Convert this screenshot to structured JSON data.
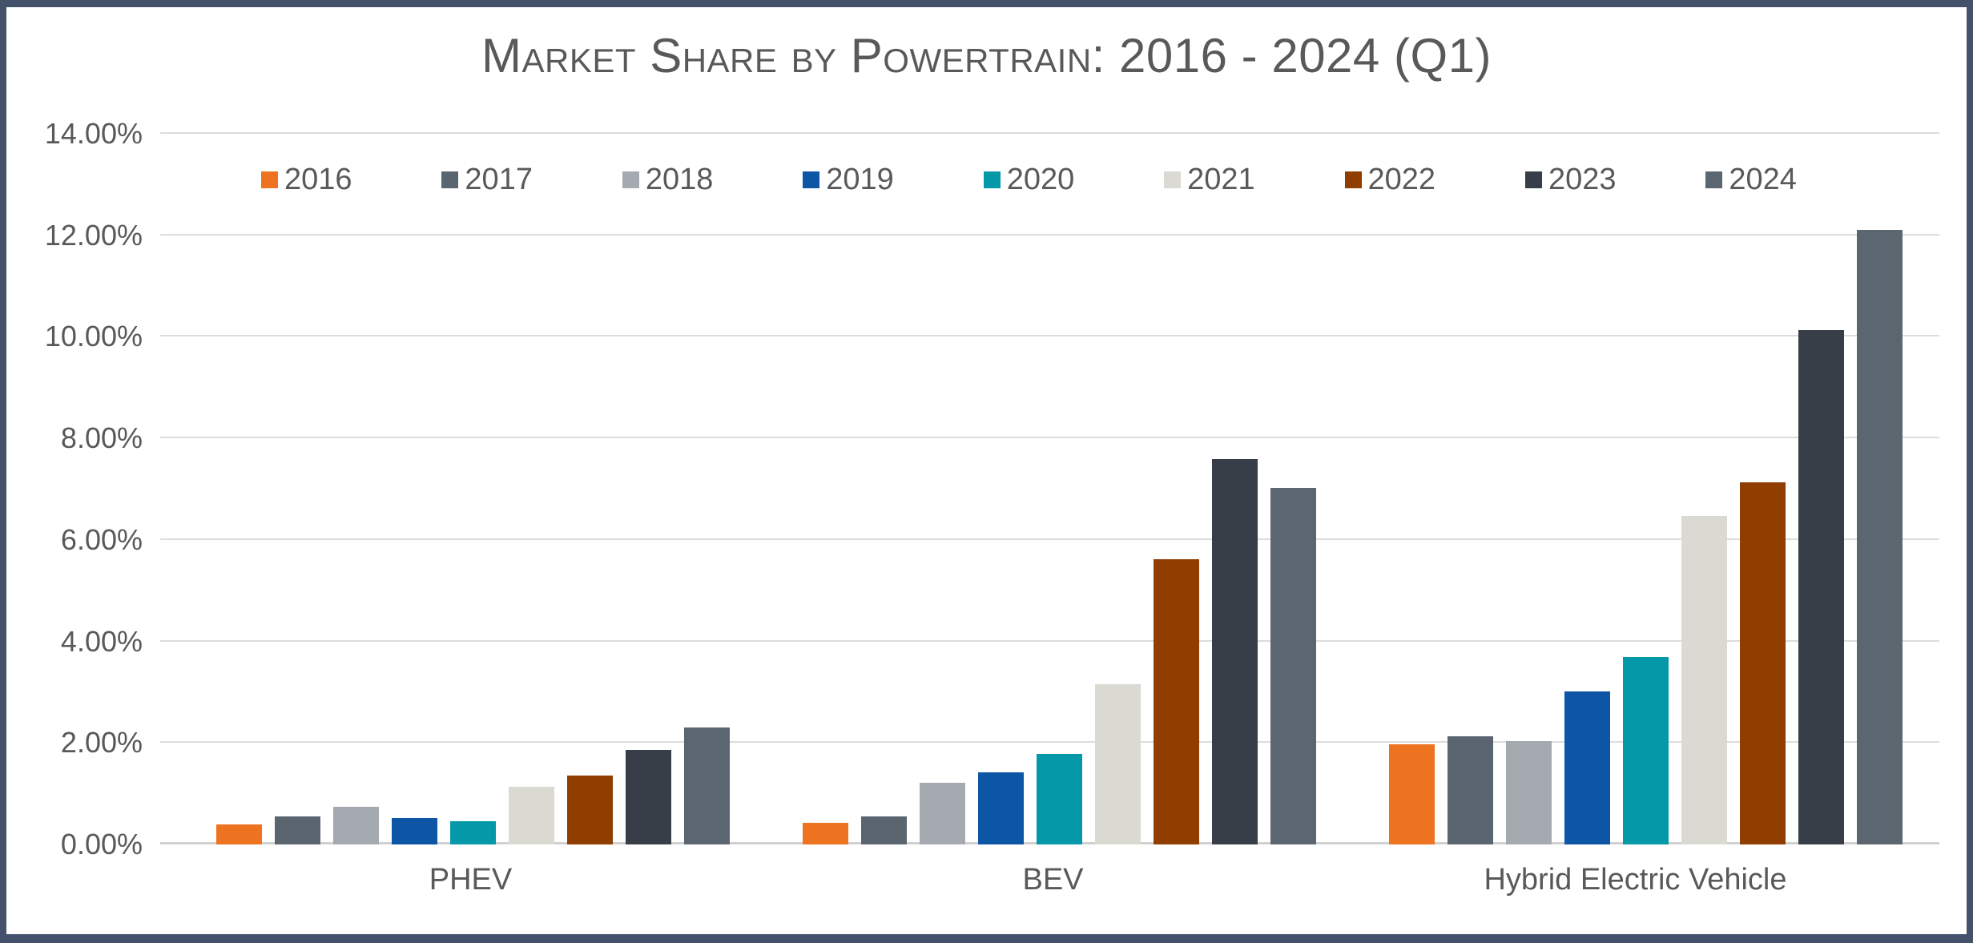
{
  "frame": {
    "border_color": "#44516B",
    "background": "#FFFFFF"
  },
  "title": "Market Share by Powertrain: 2016 - 2024 (Q1)",
  "colors": {
    "text": "#595959",
    "gridline": "#DDDDDD",
    "axis_line": "#D1D1D1"
  },
  "chart_data": {
    "type": "bar",
    "title": "Market Share by Powertrain: 2016 - 2024 (Q1)",
    "categories": [
      "PHEV",
      "BEV",
      "Hybrid Electric Vehicle"
    ],
    "series": [
      {
        "name": "2016",
        "color": "#EE7320",
        "values": [
          0.4,
          0.42,
          1.97
        ]
      },
      {
        "name": "2017",
        "color": "#5B6570",
        "values": [
          0.55,
          0.56,
          2.13
        ]
      },
      {
        "name": "2018",
        "color": "#A4AAAF",
        "values": [
          0.74,
          1.22,
          2.04
        ]
      },
      {
        "name": "2019",
        "color": "#0D55A5",
        "values": [
          0.52,
          1.42,
          3.02
        ]
      },
      {
        "name": "2020",
        "color": "#0598A8",
        "values": [
          0.46,
          1.79,
          3.7
        ]
      },
      {
        "name": "2021",
        "color": "#DBDAD2",
        "values": [
          1.14,
          3.15,
          6.47
        ]
      },
      {
        "name": "2022",
        "color": "#8F3E00",
        "values": [
          1.35,
          5.62,
          7.14
        ]
      },
      {
        "name": "2023",
        "color": "#373E47",
        "values": [
          1.87,
          7.6,
          10.14
        ]
      },
      {
        "name": "2024",
        "color": "#5C6670",
        "values": [
          2.3,
          7.03,
          12.11
        ]
      }
    ],
    "xlabel": "",
    "ylabel": "",
    "ylim": [
      0,
      14
    ],
    "ytick_step": 2,
    "ytick_labels": [
      "0.00%",
      "2.00%",
      "4.00%",
      "6.00%",
      "8.00%",
      "10.00%",
      "12.00%",
      "14.00%"
    ],
    "grid": true,
    "legend_position": "top-inside"
  }
}
